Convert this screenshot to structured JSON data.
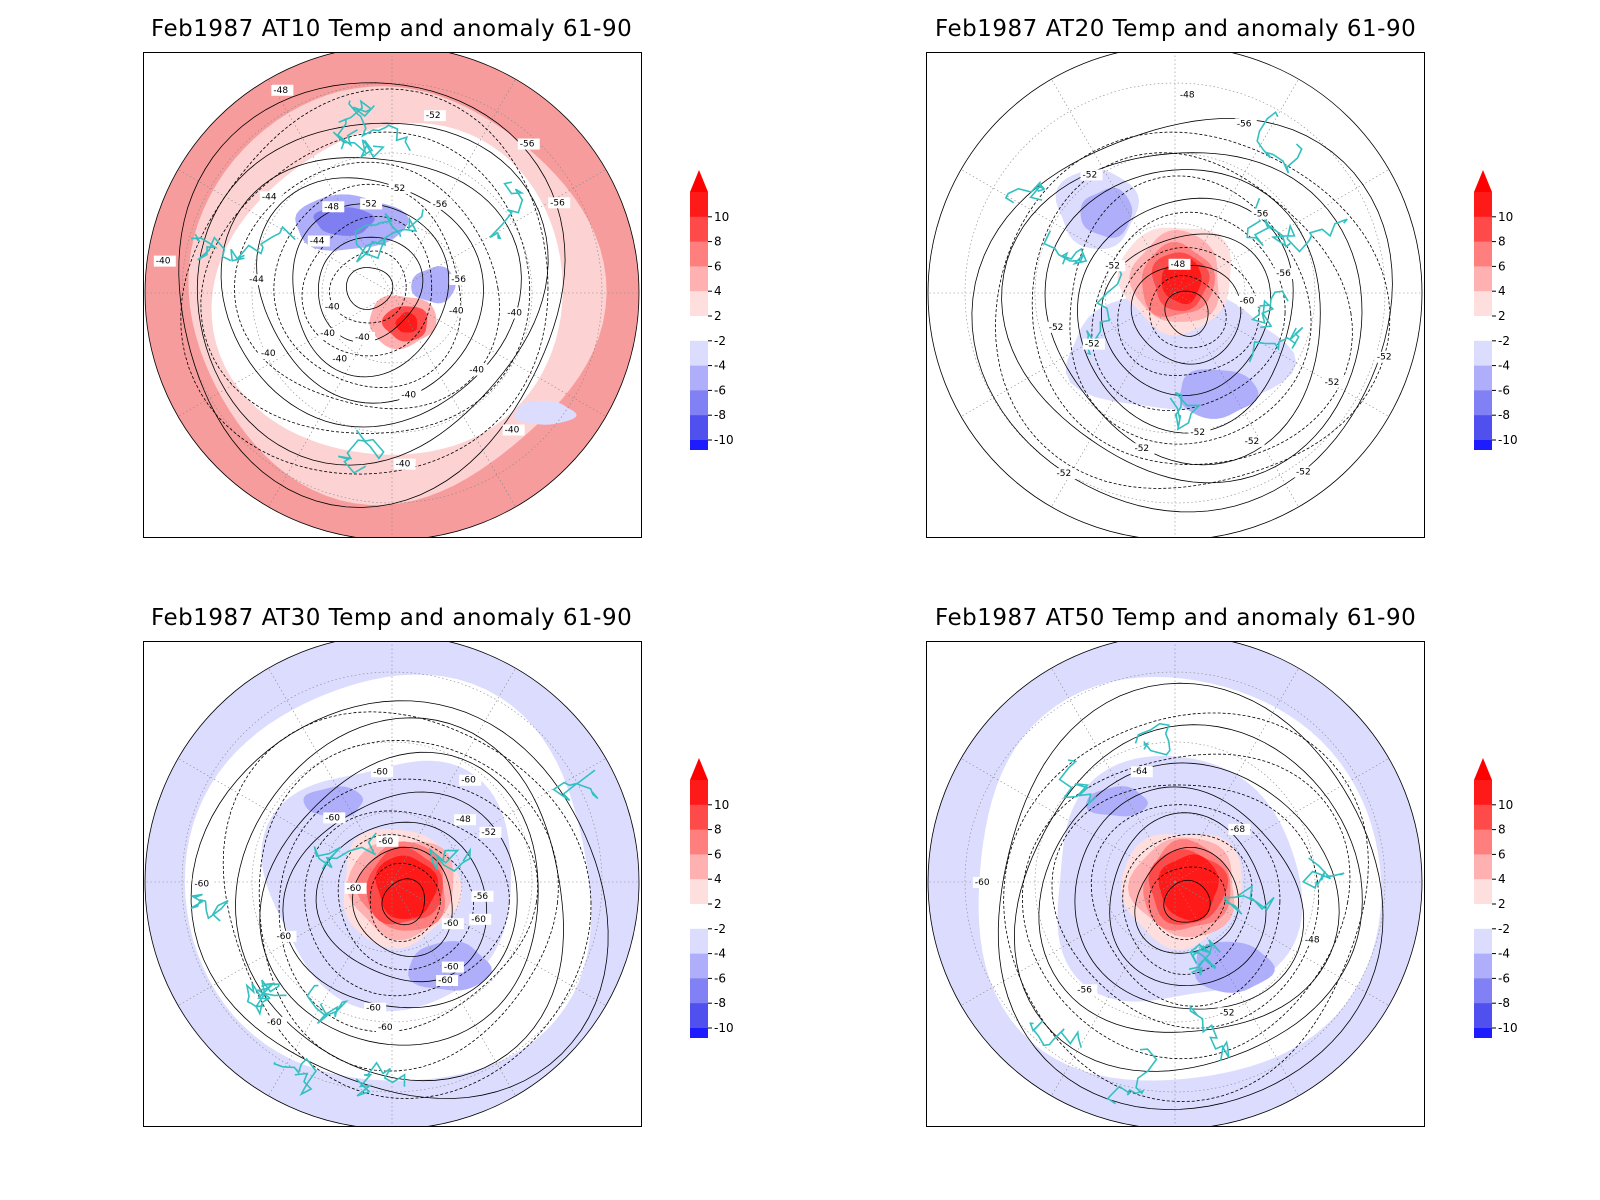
{
  "panels": [
    {
      "title": "Feb1987 AT10 Temp and anomaly 61-90",
      "theme": "warm",
      "contour_labels": [
        "-40",
        "-40",
        "-40",
        "-40",
        "-40",
        "-40",
        "-40",
        "-40",
        "-40",
        "-40",
        "-40",
        "-40",
        "-44",
        "-44",
        "-44",
        "-48",
        "-48",
        "-52",
        "-52",
        "-52",
        "-56",
        "-56",
        "-56",
        "-56"
      ]
    },
    {
      "title": "Feb1987 AT20 Temp and anomaly 61-90",
      "theme": "neutral",
      "contour_labels": [
        "-52",
        "-52",
        "-52",
        "-52",
        "-52",
        "-52",
        "-52",
        "-52",
        "-52",
        "-52",
        "-52",
        "-48",
        "-48",
        "-56",
        "-56",
        "-56",
        "-60"
      ]
    },
    {
      "title": "Feb1987 AT30 Temp and anomaly 61-90",
      "theme": "cool",
      "contour_labels": [
        "-60",
        "-60",
        "-60",
        "-60",
        "-60",
        "-60",
        "-60",
        "-60",
        "-60",
        "-60",
        "-60",
        "-60",
        "-60",
        "-60",
        "-48",
        "-52",
        "-56"
      ]
    },
    {
      "title": "Feb1987 AT50 Temp and anomaly 61-90",
      "theme": "cool",
      "contour_labels": [
        "-48",
        "-52",
        "-56",
        "-60",
        "-64",
        "-68"
      ]
    }
  ],
  "colorbar": {
    "labels": [
      "10",
      "8",
      "6",
      "4",
      "2",
      "-2",
      "-4",
      "-6",
      "-8",
      "-10"
    ],
    "colors": [
      "#ff1a1a",
      "#ff4a4a",
      "#ff7e7e",
      "#ffb0b0",
      "#ffdede",
      "#ffffff",
      "#dcdcff",
      "#aeaefa",
      "#8181f5",
      "#5050ef",
      "#1c1cff"
    ],
    "top_arrow": "#ff0000",
    "bottom_arrow": "#0000ff"
  },
  "colors": {
    "coast": "#33c0c0",
    "contour": "#000000",
    "grid": "#888888"
  }
}
